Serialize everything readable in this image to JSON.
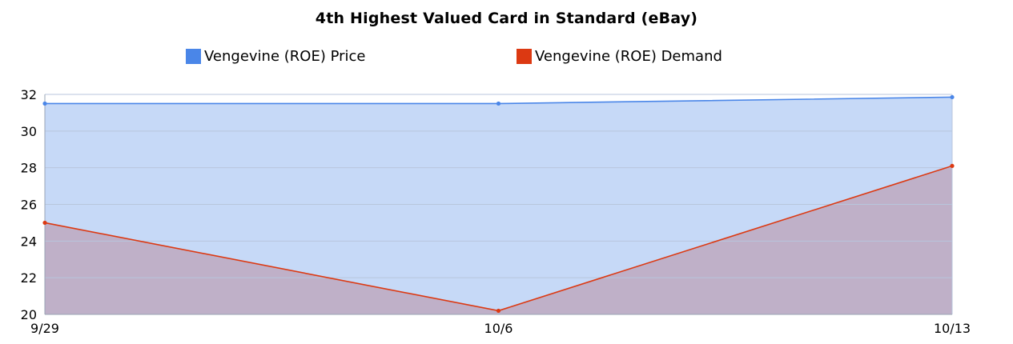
{
  "title": "4th Highest Valued Card in Standard (eBay)",
  "chart_data": {
    "type": "area",
    "title": "4th Highest Valued Card in Standard (eBay)",
    "categories": [
      "9/29",
      "10/6",
      "10/13"
    ],
    "series": [
      {
        "name": "Vengevine (ROE) Price",
        "color": "#4a86e8",
        "fill": "#c6d9f7",
        "values": [
          31.5,
          31.5,
          31.85
        ]
      },
      {
        "name": "Vengevine (ROE) Demand",
        "color": "#dc3912",
        "fill": "#bfb0c8",
        "values": [
          25.0,
          20.2,
          28.1
        ]
      }
    ],
    "ylim": [
      20,
      32
    ],
    "yticks": [
      20,
      22,
      24,
      26,
      28,
      30,
      32
    ],
    "grid": true,
    "legend": "top",
    "xlabel": "",
    "ylabel": ""
  }
}
